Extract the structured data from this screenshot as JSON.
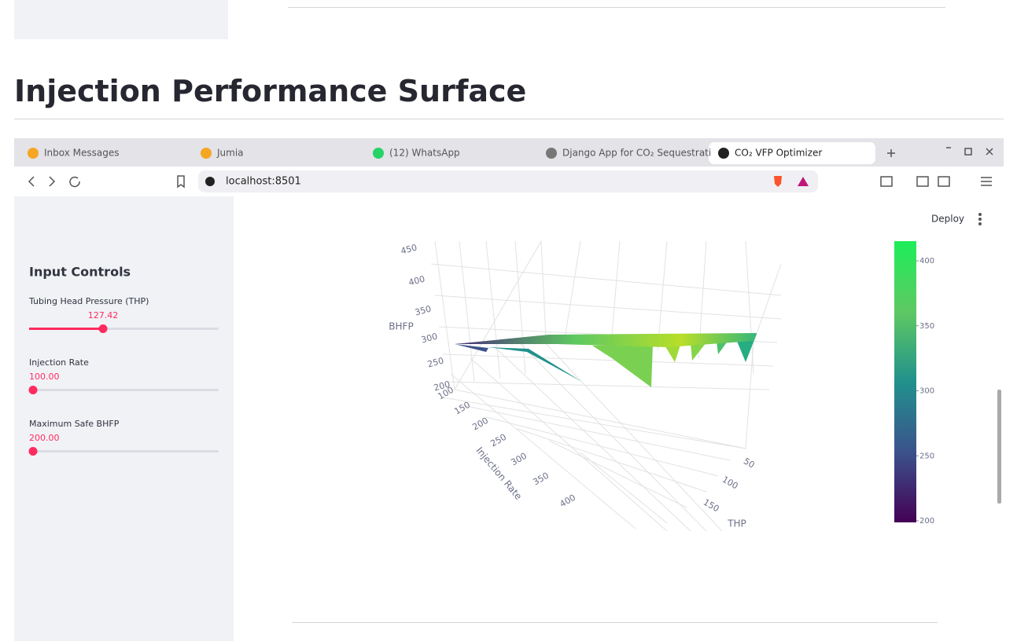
{
  "page": {
    "heading": "Injection Performance Surface"
  },
  "browser": {
    "tabs": [
      "Inbox Messages",
      "Jumia",
      "(12) WhatsApp",
      "Django App for CO₂ Sequestrati",
      "CO₂ VFP Optimizer"
    ],
    "url": "localhost:8501"
  },
  "app": {
    "deploy": "Deploy",
    "sidebar": {
      "title": "Input Controls",
      "sliders": [
        {
          "label": "Tubing Head Pressure (THP)",
          "value": "127.42"
        },
        {
          "label": "Injection Rate",
          "value": "100.00"
        },
        {
          "label": "Maximum Safe BHFP",
          "value": "200.00"
        }
      ]
    }
  },
  "plot": {
    "z_title": "BHFP",
    "z_ticks": [
      200,
      250,
      300,
      350,
      400,
      450
    ],
    "y_title": "Injection Rate",
    "y_ticks": [
      100,
      150,
      200,
      250,
      300,
      350,
      400
    ],
    "x_title": "THP",
    "x_ticks": [
      50,
      100,
      150
    ],
    "colorbar_ticks": [
      200,
      250,
      300,
      350,
      400
    ]
  }
}
